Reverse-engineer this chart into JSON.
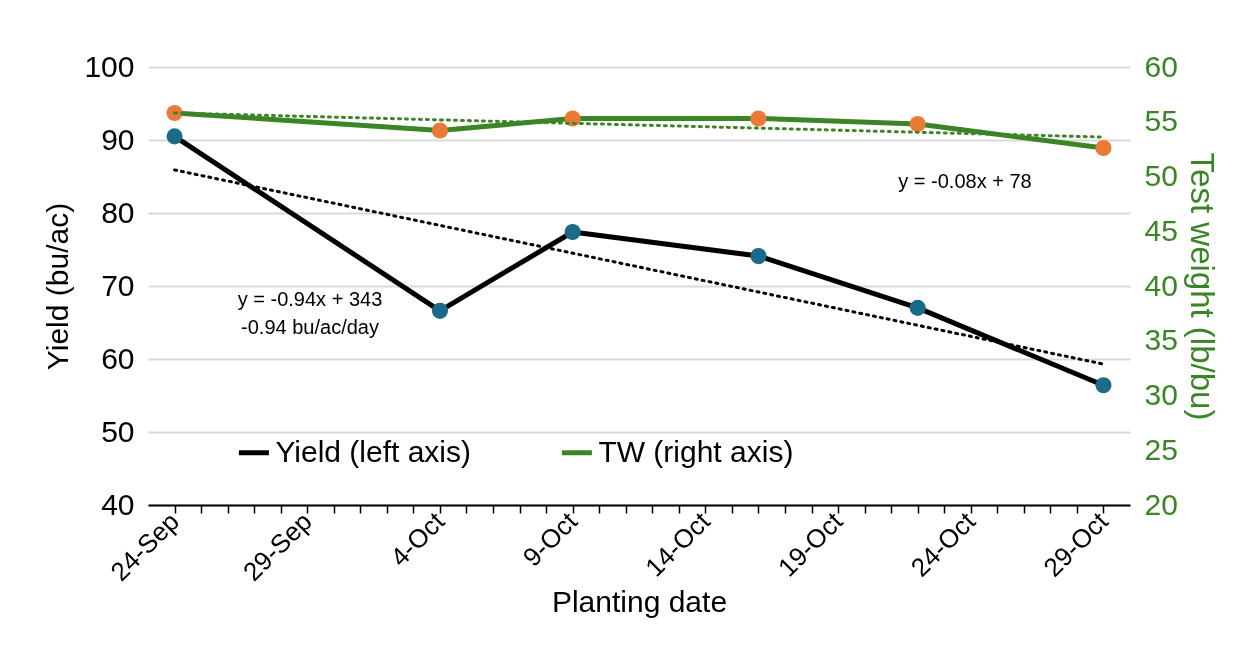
{
  "chart_data": {
    "type": "line",
    "xlabel": "Planting date",
    "ylabel": "Yield (bu/ac)",
    "y2label": "Test weight (lb/bu)",
    "x": [
      "--09-24",
      "--10-04",
      "--10-09",
      "--10-16",
      "--10-22",
      "--10-29"
    ],
    "xlim": [
      "--09-23",
      "--10-30"
    ],
    "xticks": [
      {
        "value": "--09-24",
        "label": "24-Sep"
      },
      {
        "value": "--09-25",
        "label": null
      },
      {
        "value": "--09-26",
        "label": null
      },
      {
        "value": "--09-27",
        "label": null
      },
      {
        "value": "--09-28",
        "label": null
      },
      {
        "value": "--09-29",
        "label": "29-Sep"
      },
      {
        "value": "--09-30",
        "label": null
      },
      {
        "value": "--10-01",
        "label": null
      },
      {
        "value": "--10-02",
        "label": null
      },
      {
        "value": "--10-03",
        "label": null
      },
      {
        "value": "--10-04",
        "label": "4-Oct"
      },
      {
        "value": "--10-05",
        "label": null
      },
      {
        "value": "--10-06",
        "label": null
      },
      {
        "value": "--10-07",
        "label": null
      },
      {
        "value": "--10-08",
        "label": null
      },
      {
        "value": "--10-09",
        "label": "9-Oct"
      },
      {
        "value": "--10-10",
        "label": null
      },
      {
        "value": "--10-11",
        "label": null
      },
      {
        "value": "--10-12",
        "label": null
      },
      {
        "value": "--10-13",
        "label": null
      },
      {
        "value": "--10-14",
        "label": "14-Oct"
      },
      {
        "value": "--10-15",
        "label": null
      },
      {
        "value": "--10-16",
        "label": null
      },
      {
        "value": "--10-17",
        "label": null
      },
      {
        "value": "--10-18",
        "label": null
      },
      {
        "value": "--10-19",
        "label": "19-Oct"
      },
      {
        "value": "--10-20",
        "label": null
      },
      {
        "value": "--10-21",
        "label": null
      },
      {
        "value": "--10-22",
        "label": null
      },
      {
        "value": "--10-23",
        "label": null
      },
      {
        "value": "--10-24",
        "label": "24-Oct"
      },
      {
        "value": "--10-25",
        "label": null
      },
      {
        "value": "--10-26",
        "label": null
      },
      {
        "value": "--10-27",
        "label": null
      },
      {
        "value": "--10-28",
        "label": null
      },
      {
        "value": "--10-29",
        "label": "29-Oct"
      }
    ],
    "ylim": [
      40,
      100
    ],
    "yticks": [
      40,
      50,
      60,
      70,
      80,
      90,
      100
    ],
    "y2lim": [
      20,
      60
    ],
    "y2ticks": [
      20,
      25,
      30,
      35,
      40,
      45,
      50,
      55,
      60
    ],
    "grid": "y",
    "legend": "bottom",
    "marker": "circle",
    "series": [
      {
        "name": "Yield (left axis)",
        "color": "#000000",
        "colors": [
          "#1b6a8a",
          "#1b6a8a",
          "#1b6a8a",
          "#1b6a8a",
          "#1b6a8a",
          "#1b6a8a"
        ],
        "values": [
          90.5,
          66.6,
          77.4,
          74.1,
          67.0,
          56.4
        ]
      },
      {
        "type": "line",
        "x": [
          "--09-24",
          "--10-29"
        ],
        "color": "#000000",
        "line_style": "dotted",
        "marker": "none",
        "values": [
          85.9,
          59.3
        ]
      },
      {
        "name": "TW (right axis)",
        "axis": "y2",
        "color": "#3b8526",
        "colors": [
          "#ea7a35",
          "#ea7a35",
          "#ea7a35",
          "#ea7a35",
          "#ea7a35",
          "#ea7a35"
        ],
        "values": [
          55.8,
          54.2,
          55.3,
          55.3,
          54.8,
          52.6
        ]
      },
      {
        "type": "line",
        "axis": "y2",
        "x": [
          "--09-24",
          "--10-29"
        ],
        "color": "#3b8526",
        "line_style": "dotted",
        "marker": "none",
        "values": [
          55.8,
          53.6
        ]
      }
    ],
    "annotations": [
      "y = -0.94x + 343",
      "-0.94 bu/ac/day",
      "y = -0.08x + 78"
    ]
  }
}
